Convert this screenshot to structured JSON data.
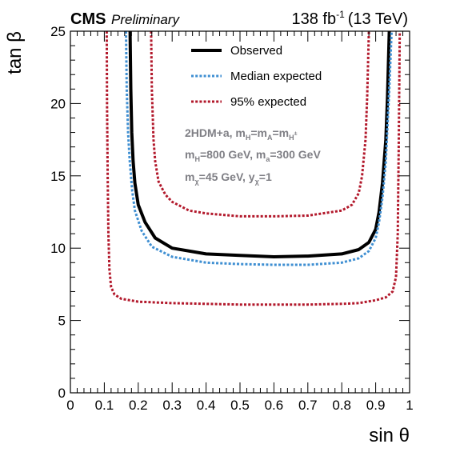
{
  "header": {
    "experiment": "CMS",
    "status": "Preliminary",
    "lumi_value": "138 fb",
    "lumi_exp": "-1",
    "energy": "(13 TeV)"
  },
  "annotations": {
    "line1_a": "2HDM+a, m",
    "line1_b": "H",
    "line1_c": "=m",
    "line1_d": "A",
    "line1_e": "=m",
    "line1_f": "H",
    "line1_g": "±",
    "line2_a": "m",
    "line2_b": "H",
    "line2_c": "=800 GeV, m",
    "line2_d": "a",
    "line2_e": "=300 GeV",
    "line3_a": "m",
    "line3_b": "χ",
    "line3_c": "=45 GeV, y",
    "line3_d": "χ",
    "line3_e": "=1"
  },
  "chart_data": {
    "type": "line",
    "xlabel": "sin θ",
    "ylabel": "tan β",
    "xlim": [
      0,
      1
    ],
    "ylim": [
      0,
      25
    ],
    "x_ticks": [
      "0",
      "0.1",
      "0.2",
      "0.3",
      "0.4",
      "0.5",
      "0.6",
      "0.7",
      "0.8",
      "0.9",
      "1"
    ],
    "y_ticks": [
      "0",
      "5",
      "10",
      "15",
      "20",
      "25"
    ],
    "legend_position": "top-center",
    "series": [
      {
        "name": "Observed",
        "color": "#000000",
        "style": "solid",
        "x": [
          0.176,
          0.178,
          0.181,
          0.185,
          0.19,
          0.2,
          0.22,
          0.25,
          0.3,
          0.4,
          0.5,
          0.6,
          0.7,
          0.8,
          0.85,
          0.88,
          0.9,
          0.91,
          0.92,
          0.93,
          0.935,
          0.94
        ],
        "y": [
          25,
          21,
          18,
          16,
          14.5,
          13.0,
          11.8,
          10.7,
          10.0,
          9.6,
          9.5,
          9.4,
          9.45,
          9.6,
          9.9,
          10.4,
          11.3,
          12.5,
          14.5,
          17.5,
          20.5,
          25
        ]
      },
      {
        "name": "Median expected",
        "color": "#3f8fd2",
        "style": "dotted",
        "x": [
          0.164,
          0.166,
          0.17,
          0.175,
          0.182,
          0.19,
          0.21,
          0.24,
          0.3,
          0.4,
          0.5,
          0.6,
          0.7,
          0.8,
          0.85,
          0.88,
          0.9,
          0.91,
          0.92,
          0.93,
          0.935,
          0.94,
          0.947
        ],
        "y": [
          25,
          21,
          18,
          16,
          14,
          12.6,
          11.2,
          10.1,
          9.4,
          9.0,
          8.9,
          8.85,
          8.85,
          9.0,
          9.3,
          9.8,
          10.7,
          11.8,
          13.5,
          16,
          18.5,
          21,
          25
        ]
      },
      {
        "name": "95% expected",
        "color": "#b2182b",
        "style": "dotted",
        "x": [
          0.107,
          0.108,
          0.11,
          0.112,
          0.115,
          0.12,
          0.13,
          0.15,
          0.2,
          0.3,
          0.4,
          0.5,
          0.6,
          0.7,
          0.8,
          0.85,
          0.9,
          0.93,
          0.95,
          0.96,
          0.965,
          0.968,
          0.971
        ],
        "y": [
          25,
          20,
          15,
          11,
          8.5,
          7.3,
          6.8,
          6.5,
          6.3,
          6.2,
          6.15,
          6.1,
          6.1,
          6.1,
          6.15,
          6.2,
          6.4,
          6.6,
          7.0,
          8.0,
          11,
          17,
          25
        ]
      },
      {
        "name": "",
        "color": "#b2182b",
        "style": "dotted",
        "x": [
          0.238,
          0.24,
          0.245,
          0.25,
          0.26,
          0.28,
          0.3,
          0.35,
          0.4,
          0.5,
          0.6,
          0.7,
          0.8,
          0.83,
          0.85,
          0.86,
          0.87,
          0.875,
          0.88
        ],
        "y": [
          25,
          21,
          17.5,
          16,
          14.6,
          13.7,
          13.2,
          12.6,
          12.4,
          12.2,
          12.2,
          12.25,
          12.6,
          13.0,
          13.8,
          15,
          17.5,
          20.5,
          25
        ]
      }
    ]
  }
}
